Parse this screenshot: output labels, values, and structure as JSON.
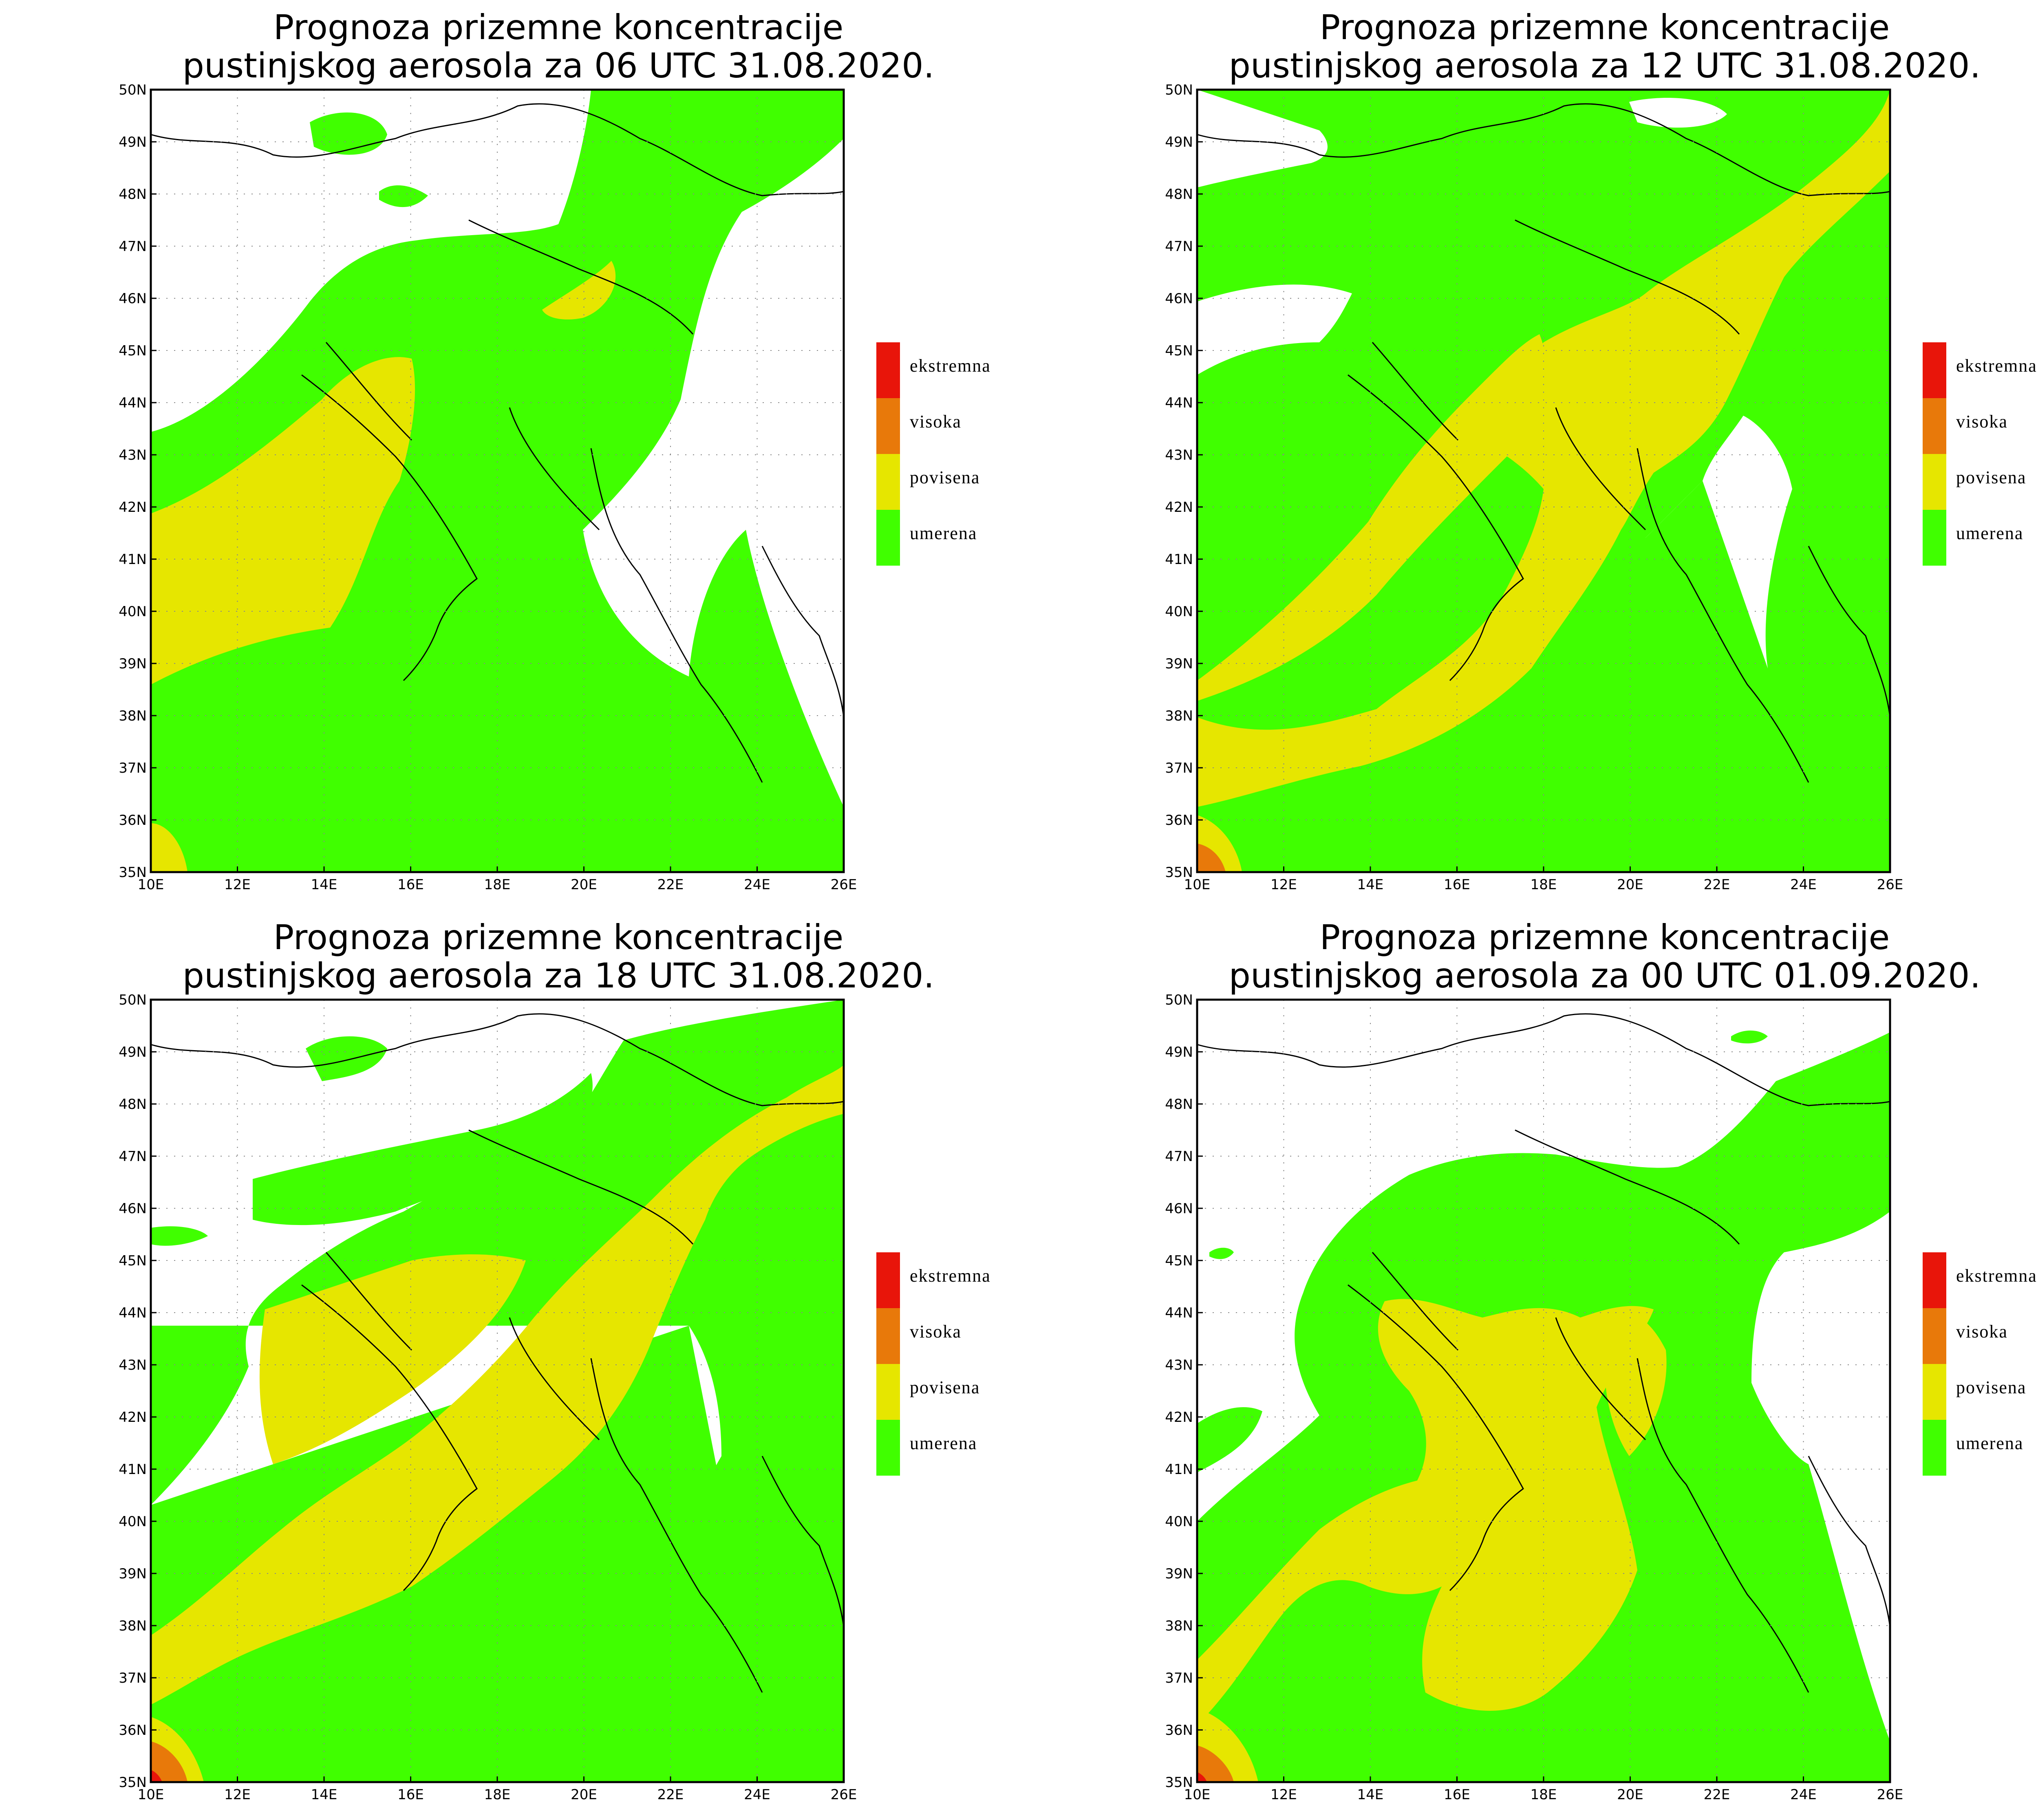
{
  "maps": [
    {
      "title_line1": "Prognoza prizemne koncentracije",
      "title_line2": "pustinjskog aerosola za 06 UTC 31.08.2020."
    },
    {
      "title_line1": "Prognoza prizemne koncentracije",
      "title_line2": "pustinjskog aerosola za 12 UTC 31.08.2020."
    },
    {
      "title_line1": "Prognoza prizemne koncentracije",
      "title_line2": "pustinjskog aerosola za 18 UTC 31.08.2020."
    },
    {
      "title_line1": "Prognoza prizemne koncentracije",
      "title_line2": "pustinjskog aerosola za 00 UTC 01.09.2020."
    }
  ],
  "lat_ticks": [
    "35N",
    "36N",
    "37N",
    "38N",
    "39N",
    "40N",
    "41N",
    "42N",
    "43N",
    "44N",
    "45N",
    "46N",
    "47N",
    "48N",
    "49N",
    "50N"
  ],
  "lon_ticks": [
    "10E",
    "12E",
    "14E",
    "16E",
    "18E",
    "20E",
    "22E",
    "24E",
    "26E"
  ],
  "legend": [
    {
      "label": "ekstremna",
      "color": "#e8150a"
    },
    {
      "label": "visoka",
      "color": "#e8790a"
    },
    {
      "label": "povisena",
      "color": "#e6e600"
    },
    {
      "label": "umerena",
      "color": "#40ff00"
    }
  ],
  "colors": {
    "background": "#ffffff",
    "umerena": "#40ff00",
    "povisena": "#e6e600",
    "visoka": "#e8790a",
    "ekstremna": "#e8150a"
  }
}
